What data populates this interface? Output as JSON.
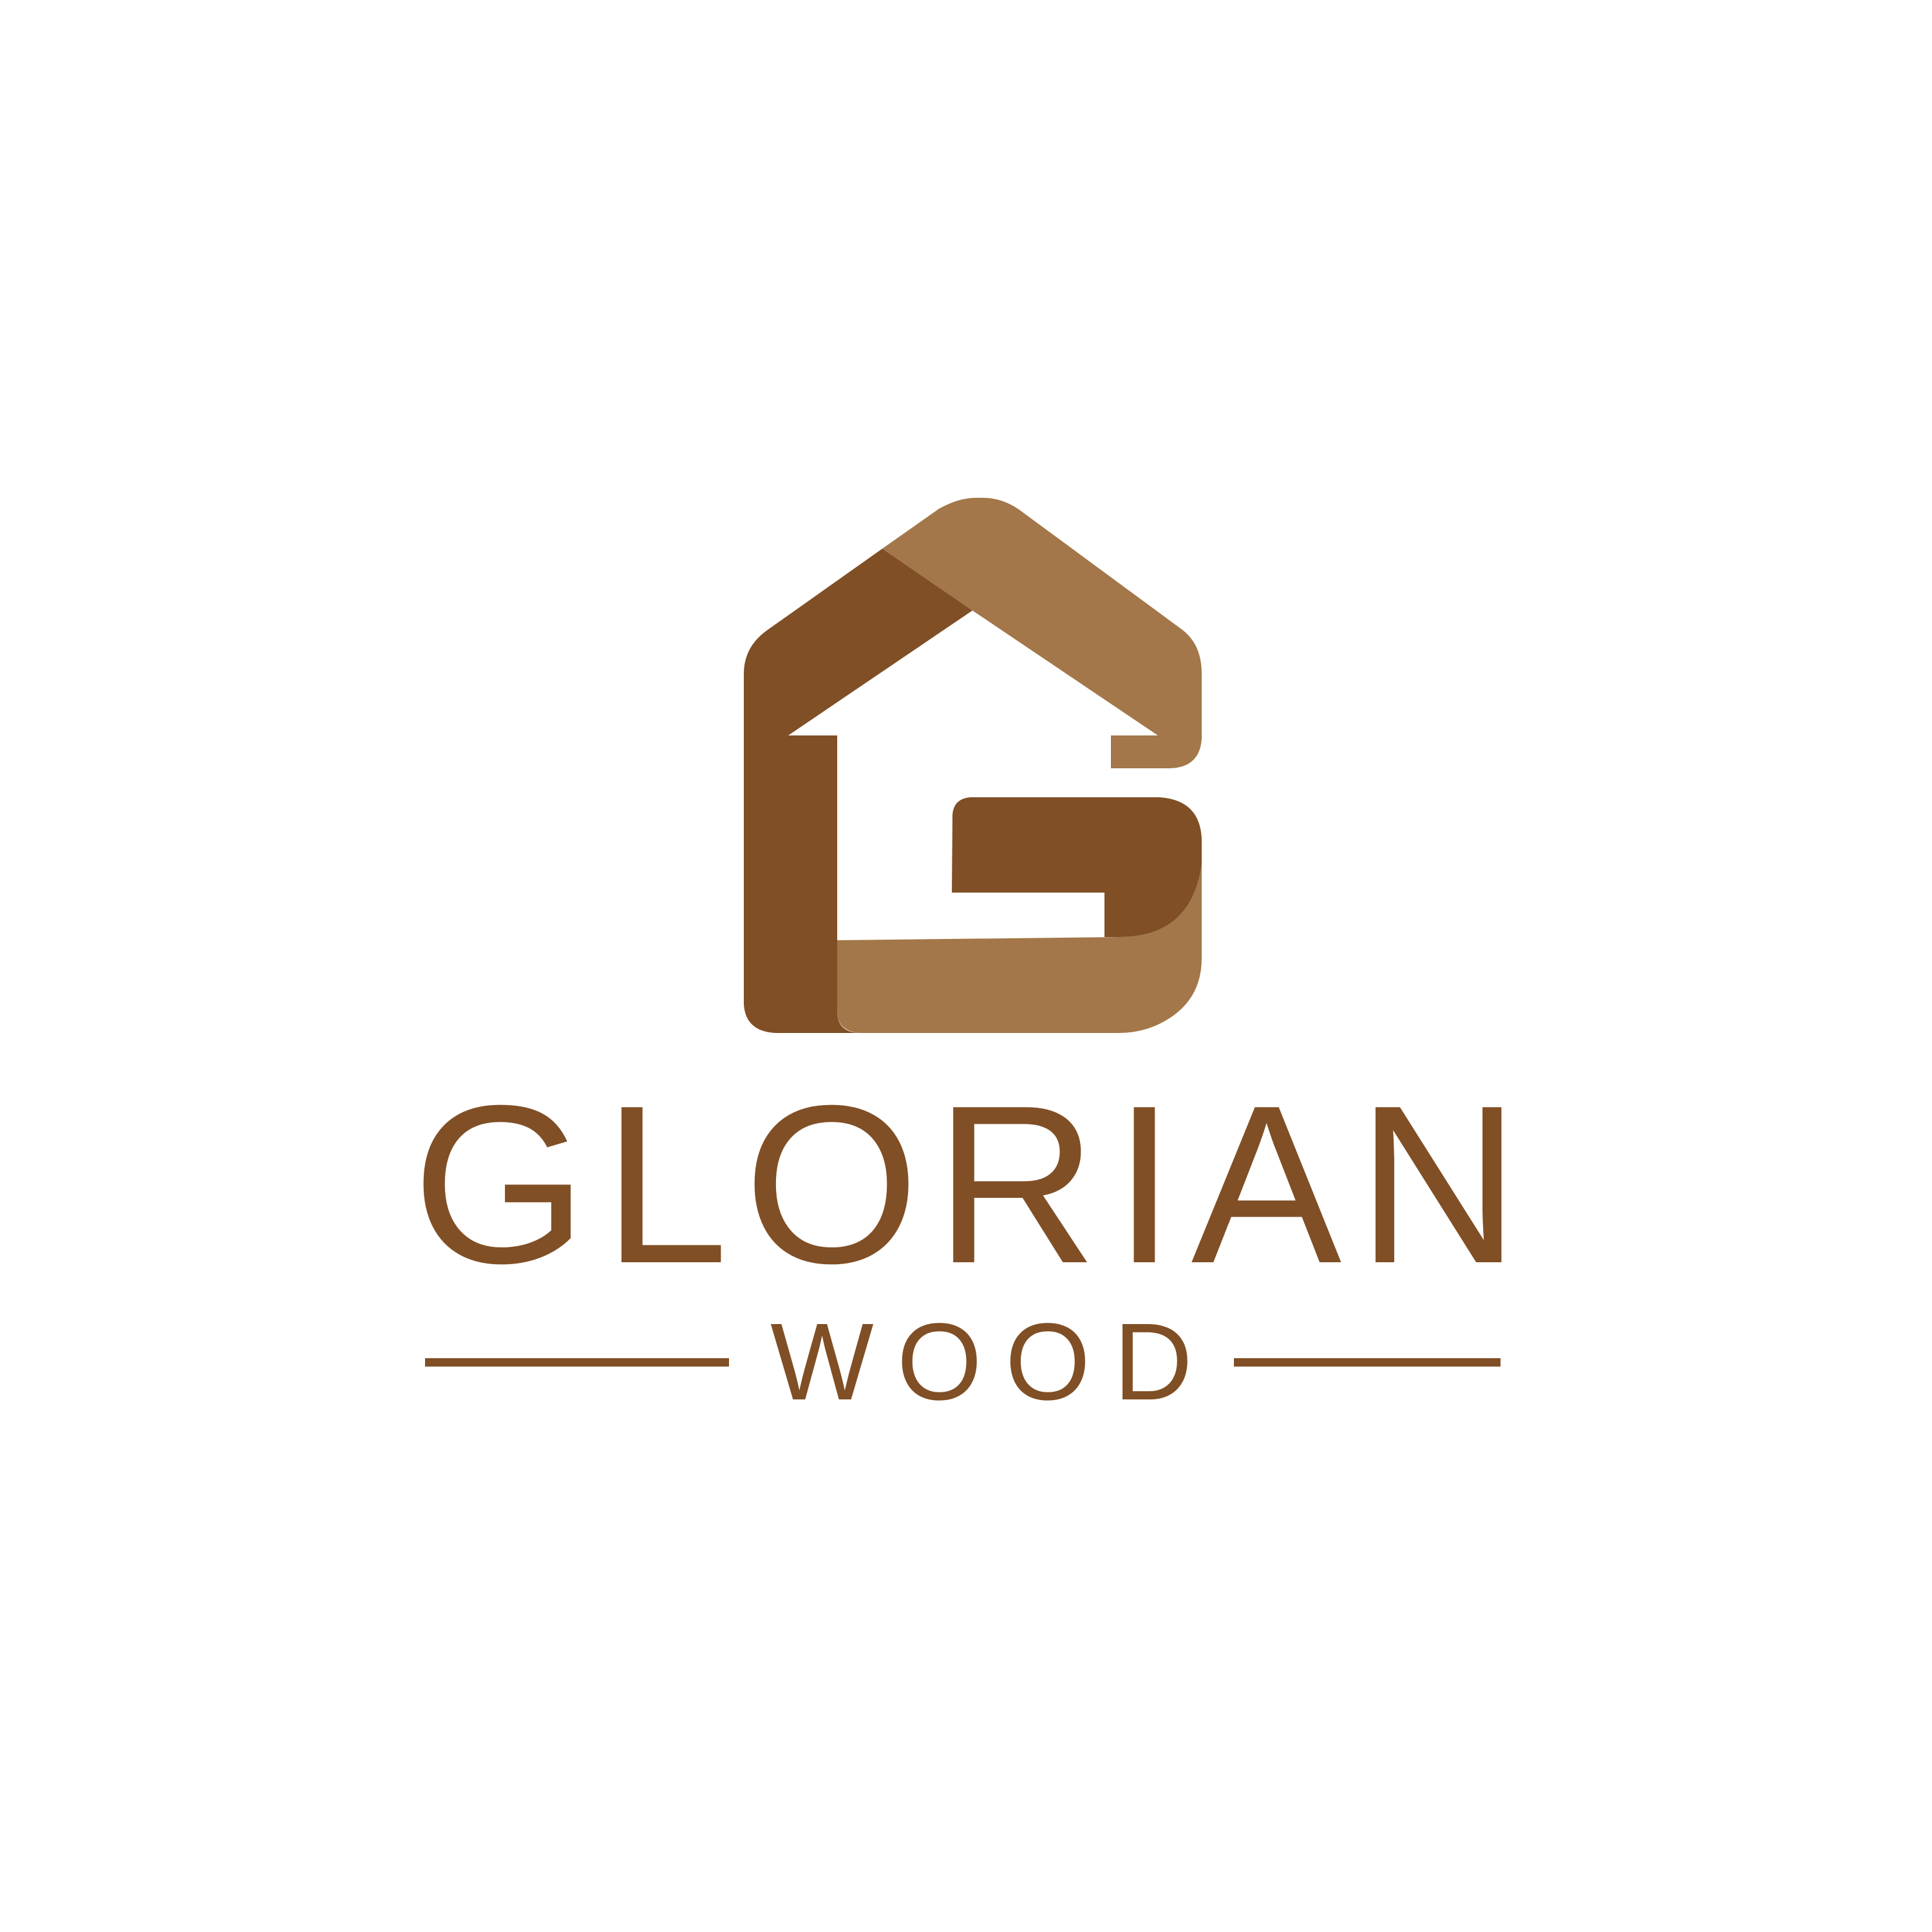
{
  "brand": {
    "name_letters": [
      "G",
      "L",
      "O",
      "R",
      "I",
      "A",
      "N"
    ],
    "tagline": "WOOD"
  },
  "colors": {
    "background": "#ffffff",
    "dark_wood": "#804F25",
    "light_wood": "#A37749",
    "text": "#804F25"
  },
  "icons": {
    "mark": "house-g-logo-icon"
  }
}
